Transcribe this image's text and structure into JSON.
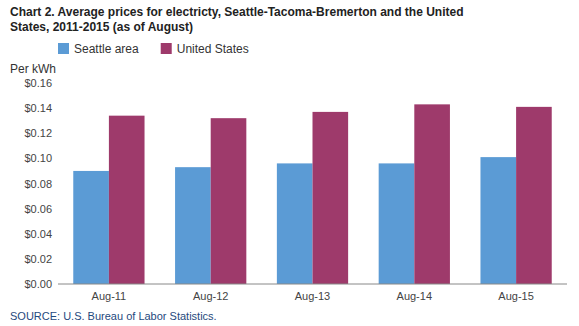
{
  "chart_data": {
    "type": "bar",
    "title": "Chart 2. Average prices for electricty, Seattle-Tacoma-Bremerton and the United\nStates, 2011-2015  (as of August)",
    "y_label": "Per kWh",
    "source": "SOURCE: U.S. Bureau of Labor Statistics.",
    "categories": [
      "Aug-11",
      "Aug-12",
      "Aug-13",
      "Aug-14",
      "Aug-15"
    ],
    "series": [
      {
        "name": "Seattle area",
        "color": "#5B9BD5",
        "values": [
          0.09,
          0.093,
          0.096,
          0.096,
          0.101
        ]
      },
      {
        "name": "United States",
        "color": "#9E3A6B",
        "values": [
          0.134,
          0.132,
          0.137,
          0.143,
          0.141
        ]
      }
    ],
    "ylim": [
      0,
      0.16
    ],
    "yticks": [
      {
        "value": 0.0,
        "label": "$0.00"
      },
      {
        "value": 0.02,
        "label": "$0.02"
      },
      {
        "value": 0.04,
        "label": "$0.04"
      },
      {
        "value": 0.06,
        "label": "$0.06"
      },
      {
        "value": 0.08,
        "label": "$0.08"
      },
      {
        "value": 0.1,
        "label": "$0.10"
      },
      {
        "value": 0.12,
        "label": "$0.12"
      },
      {
        "value": 0.14,
        "label": "$0.14"
      },
      {
        "value": 0.16,
        "label": "$0.16"
      }
    ],
    "grid": false,
    "legend": "top"
  }
}
